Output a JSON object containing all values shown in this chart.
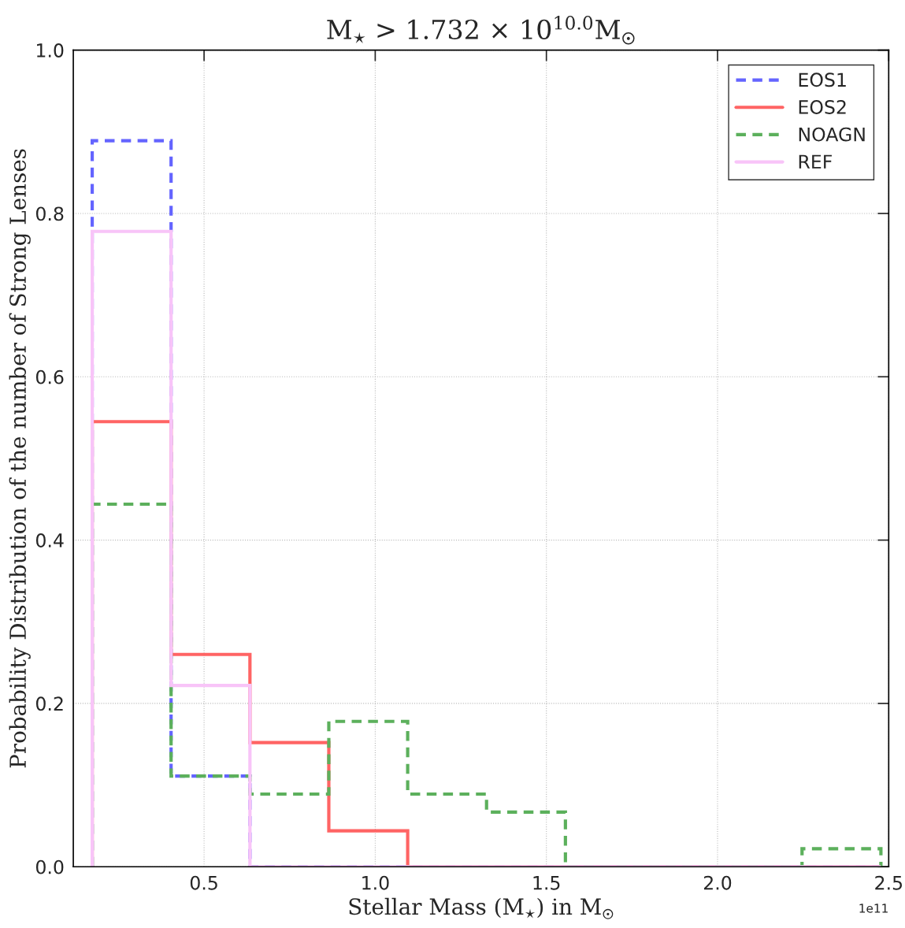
{
  "chart_data": {
    "type": "histogram",
    "title": "M$_{⋆}$ > 1.732 × 10$^{10.0}$M$_{☉}$",
    "xlabel": "Stellar Mass (M$_{⋆}$) in M$_{☉}$",
    "ylabel": "Probability Distribution of the number of Strong Lenses",
    "annotations": [
      "1e11"
    ],
    "bins": [
      0.1732,
      0.4036,
      0.634,
      0.8644,
      1.0948,
      1.3252,
      1.5556,
      1.786,
      2.0164,
      2.2468,
      2.4772
    ],
    "series": [
      {
        "name": "EOS1",
        "color": "#6464ff",
        "line_style": "dashed",
        "values": [
          0.889,
          0.111,
          0,
          0,
          0,
          0,
          0,
          0,
          0,
          0
        ]
      },
      {
        "name": "EOS2",
        "color": "#ff6464",
        "line_style": "solid",
        "values": [
          0.545,
          0.26,
          0.152,
          0.044,
          0,
          0,
          0,
          0,
          0,
          0
        ]
      },
      {
        "name": "NOAGN",
        "color": "#5cb05c",
        "line_style": "dashed",
        "values": [
          0.444,
          0.111,
          0.089,
          0.178,
          0.089,
          0.067,
          0,
          0,
          0,
          0.022
        ]
      },
      {
        "name": "REF",
        "color": "#f8c4f8",
        "line_style": "solid",
        "values": [
          0.778,
          0.222,
          0,
          0,
          0,
          0,
          0,
          0,
          0,
          0
        ]
      }
    ],
    "xlim": [
      0.118,
      2.5
    ],
    "xticks": [
      0.5,
      {
        "value": 1,
        "label": "1.0"
      },
      1.5,
      {
        "value": 2,
        "label": "2.0"
      },
      2.5
    ],
    "ylim": [
      0,
      1.0
    ],
    "yticks": [
      {
        "value": 0,
        "label": "0.0"
      },
      0.2,
      0.4,
      0.6,
      0.8,
      {
        "value": 1,
        "label": "1.0"
      }
    ],
    "grid": true,
    "legend": "top right"
  }
}
